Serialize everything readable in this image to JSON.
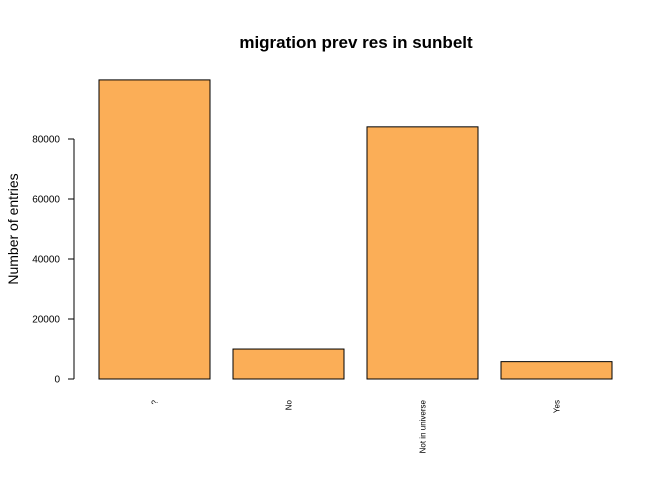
{
  "chart_data": {
    "type": "bar",
    "title": "migration prev res in sunbelt",
    "xlabel": "",
    "ylabel": "Number of entries",
    "categories": [
      "?",
      "No",
      "Not in universe",
      "Yes"
    ],
    "values": [
      99696,
      9987,
      84054,
      5786
    ],
    "ylim": [
      0,
      100000
    ],
    "yticks": [
      0,
      20000,
      40000,
      60000,
      80000
    ],
    "bar_color": "#FBAE57",
    "grid": false
  }
}
